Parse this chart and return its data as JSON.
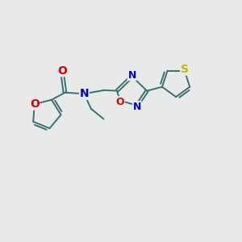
{
  "bg_color": "#e8eaea",
  "bond_color": "#3a7070",
  "atom_colors": {
    "O": "#dd0000",
    "N": "#0000cc",
    "S": "#bbbb00",
    "C": "#3a7070"
  },
  "lw": 1.4,
  "fs": 10
}
